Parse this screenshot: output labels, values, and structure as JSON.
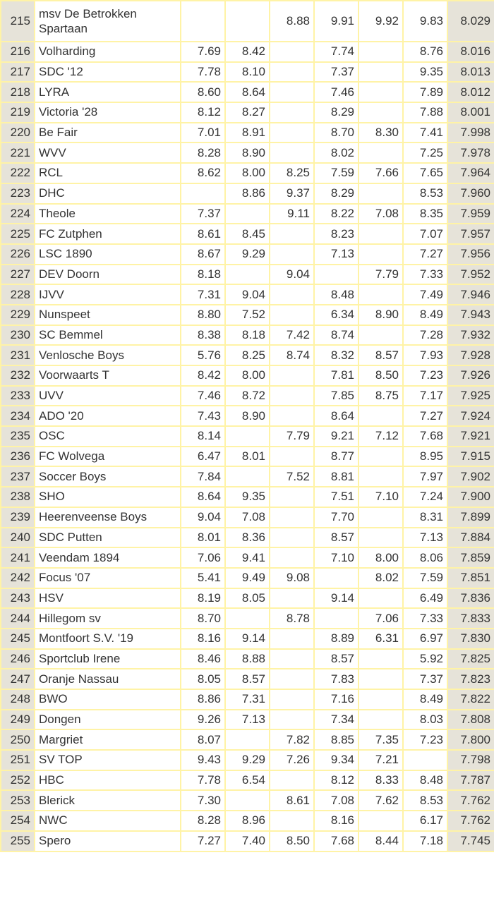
{
  "rows": [
    {
      "rank": "215",
      "club": "msv De Betrokken Spartaan",
      "scores": [
        "",
        "",
        "8.88",
        "9.91",
        "9.92",
        "9.83"
      ],
      "total": "8.029"
    },
    {
      "rank": "216",
      "club": "Volharding",
      "scores": [
        "7.69",
        "8.42",
        "",
        "7.74",
        "",
        "8.76"
      ],
      "total": "8.016"
    },
    {
      "rank": "217",
      "club": "SDC '12",
      "scores": [
        "7.78",
        "8.10",
        "",
        "7.37",
        "",
        "9.35"
      ],
      "total": "8.013"
    },
    {
      "rank": "218",
      "club": "LYRA",
      "scores": [
        "8.60",
        "8.64",
        "",
        "7.46",
        "",
        "7.89"
      ],
      "total": "8.012"
    },
    {
      "rank": "219",
      "club": "Victoria '28",
      "scores": [
        "8.12",
        "8.27",
        "",
        "8.29",
        "",
        "7.88"
      ],
      "total": "8.001"
    },
    {
      "rank": "220",
      "club": "Be Fair",
      "scores": [
        "7.01",
        "8.91",
        "",
        "8.70",
        "8.30",
        "7.41"
      ],
      "total": "7.998"
    },
    {
      "rank": "221",
      "club": "WVV",
      "scores": [
        "8.28",
        "8.90",
        "",
        "8.02",
        "",
        "7.25"
      ],
      "total": "7.978"
    },
    {
      "rank": "222",
      "club": "RCL",
      "scores": [
        "8.62",
        "8.00",
        "8.25",
        "7.59",
        "7.66",
        "7.65"
      ],
      "total": "7.964"
    },
    {
      "rank": "223",
      "club": "DHC",
      "scores": [
        "",
        "8.86",
        "9.37",
        "8.29",
        "",
        "8.53"
      ],
      "total": "7.960"
    },
    {
      "rank": "224",
      "club": "Theole",
      "scores": [
        "7.37",
        "",
        "9.11",
        "8.22",
        "7.08",
        "8.35"
      ],
      "total": "7.959"
    },
    {
      "rank": "225",
      "club": "FC Zutphen",
      "scores": [
        "8.61",
        "8.45",
        "",
        "8.23",
        "",
        "7.07"
      ],
      "total": "7.957"
    },
    {
      "rank": "226",
      "club": "LSC 1890",
      "scores": [
        "8.67",
        "9.29",
        "",
        "7.13",
        "",
        "7.27"
      ],
      "total": "7.956"
    },
    {
      "rank": "227",
      "club": "DEV Doorn",
      "scores": [
        "8.18",
        "",
        "9.04",
        "",
        "7.79",
        "7.33"
      ],
      "total": "7.952"
    },
    {
      "rank": "228",
      "club": "IJVV",
      "scores": [
        "7.31",
        "9.04",
        "",
        "8.48",
        "",
        "7.49"
      ],
      "total": "7.946"
    },
    {
      "rank": "229",
      "club": "Nunspeet",
      "scores": [
        "8.80",
        "7.52",
        "",
        "6.34",
        "8.90",
        "8.49"
      ],
      "total": "7.943"
    },
    {
      "rank": "230",
      "club": "SC Bemmel",
      "scores": [
        "8.38",
        "8.18",
        "7.42",
        "8.74",
        "",
        "7.28"
      ],
      "total": "7.932"
    },
    {
      "rank": "231",
      "club": "Venlosche Boys",
      "scores": [
        "5.76",
        "8.25",
        "8.74",
        "8.32",
        "8.57",
        "7.93"
      ],
      "total": "7.928"
    },
    {
      "rank": "232",
      "club": "Voorwaarts T",
      "scores": [
        "8.42",
        "8.00",
        "",
        "7.81",
        "8.50",
        "7.23"
      ],
      "total": "7.926"
    },
    {
      "rank": "233",
      "club": "UVV",
      "scores": [
        "7.46",
        "8.72",
        "",
        "7.85",
        "8.75",
        "7.17"
      ],
      "total": "7.925"
    },
    {
      "rank": "234",
      "club": "ADO '20",
      "scores": [
        "7.43",
        "8.90",
        "",
        "8.64",
        "",
        "7.27"
      ],
      "total": "7.924"
    },
    {
      "rank": "235",
      "club": "OSC",
      "scores": [
        "8.14",
        "",
        "7.79",
        "9.21",
        "7.12",
        "7.68"
      ],
      "total": "7.921"
    },
    {
      "rank": "236",
      "club": "FC Wolvega",
      "scores": [
        "6.47",
        "8.01",
        "",
        "8.77",
        "",
        "8.95"
      ],
      "total": "7.915"
    },
    {
      "rank": "237",
      "club": "Soccer Boys",
      "scores": [
        "7.84",
        "",
        "7.52",
        "8.81",
        "",
        "7.97"
      ],
      "total": "7.902"
    },
    {
      "rank": "238",
      "club": "SHO",
      "scores": [
        "8.64",
        "9.35",
        "",
        "7.51",
        "7.10",
        "7.24"
      ],
      "total": "7.900"
    },
    {
      "rank": "239",
      "club": "Heerenveense Boys",
      "scores": [
        "9.04",
        "7.08",
        "",
        "7.70",
        "",
        "8.31"
      ],
      "total": "7.899"
    },
    {
      "rank": "240",
      "club": "SDC Putten",
      "scores": [
        "8.01",
        "8.36",
        "",
        "8.57",
        "",
        "7.13"
      ],
      "total": "7.884"
    },
    {
      "rank": "241",
      "club": "Veendam 1894",
      "scores": [
        "7.06",
        "9.41",
        "",
        "7.10",
        "8.00",
        "8.06"
      ],
      "total": "7.859"
    },
    {
      "rank": "242",
      "club": "Focus '07",
      "scores": [
        "5.41",
        "9.49",
        "9.08",
        "",
        "8.02",
        "7.59"
      ],
      "total": "7.851"
    },
    {
      "rank": "243",
      "club": "HSV",
      "scores": [
        "8.19",
        "8.05",
        "",
        "9.14",
        "",
        "6.49"
      ],
      "total": "7.836"
    },
    {
      "rank": "244",
      "club": "Hillegom sv",
      "scores": [
        "8.70",
        "",
        "8.78",
        "",
        "7.06",
        "7.33"
      ],
      "total": "7.833"
    },
    {
      "rank": "245",
      "club": "Montfoort S.V. '19",
      "scores": [
        "8.16",
        "9.14",
        "",
        "8.89",
        "6.31",
        "6.97"
      ],
      "total": "7.830"
    },
    {
      "rank": "246",
      "club": "Sportclub Irene",
      "scores": [
        "8.46",
        "8.88",
        "",
        "8.57",
        "",
        "5.92"
      ],
      "total": "7.825"
    },
    {
      "rank": "247",
      "club": "Oranje Nassau",
      "scores": [
        "8.05",
        "8.57",
        "",
        "7.83",
        "",
        "7.37"
      ],
      "total": "7.823"
    },
    {
      "rank": "248",
      "club": "BWO",
      "scores": [
        "8.86",
        "7.31",
        "",
        "7.16",
        "",
        "8.49"
      ],
      "total": "7.822"
    },
    {
      "rank": "249",
      "club": "Dongen",
      "scores": [
        "9.26",
        "7.13",
        "",
        "7.34",
        "",
        "8.03"
      ],
      "total": "7.808"
    },
    {
      "rank": "250",
      "club": "Margriet",
      "scores": [
        "8.07",
        "",
        "7.82",
        "8.85",
        "7.35",
        "7.23"
      ],
      "total": "7.800"
    },
    {
      "rank": "251",
      "club": "SV TOP",
      "scores": [
        "9.43",
        "9.29",
        "7.26",
        "9.34",
        "7.21",
        ""
      ],
      "total": "7.798"
    },
    {
      "rank": "252",
      "club": "HBC",
      "scores": [
        "7.78",
        "6.54",
        "",
        "8.12",
        "8.33",
        "8.48"
      ],
      "total": "7.787"
    },
    {
      "rank": "253",
      "club": "Blerick",
      "scores": [
        "7.30",
        "",
        "8.61",
        "7.08",
        "7.62",
        "8.53"
      ],
      "total": "7.762"
    },
    {
      "rank": "254",
      "club": "NWC",
      "scores": [
        "8.28",
        "8.96",
        "",
        "8.16",
        "",
        "6.17"
      ],
      "total": "7.762"
    },
    {
      "rank": "255",
      "club": "Spero",
      "scores": [
        "7.27",
        "7.40",
        "8.50",
        "7.68",
        "8.44",
        "7.18"
      ],
      "total": "7.745"
    }
  ]
}
